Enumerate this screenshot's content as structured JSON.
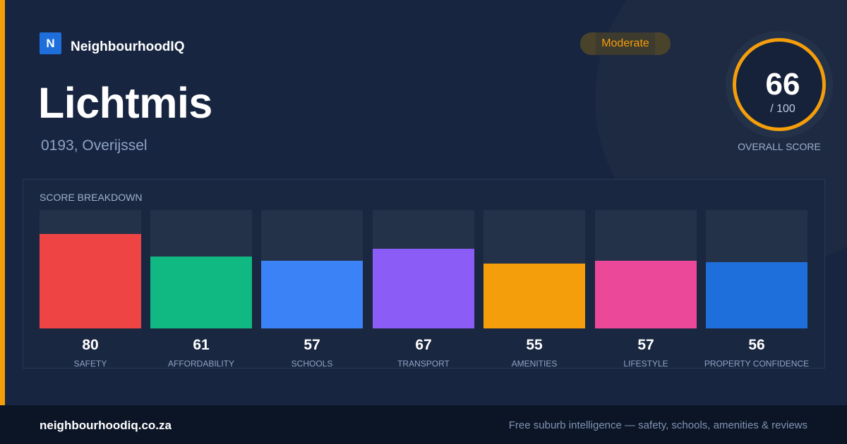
{
  "brand": {
    "logo_letter": "N",
    "name": "NeighbourhoodIQ"
  },
  "suburb": {
    "name": "Lichtmis",
    "location": "0193, Overijssel"
  },
  "rating_badge": "Moderate",
  "overall": {
    "score": "66",
    "denominator": "/ 100",
    "label": "OVERALL SCORE",
    "fraction": 0.66
  },
  "breakdown": {
    "title": "SCORE BREAKDOWN",
    "max": 100,
    "items": [
      {
        "label": "SAFETY",
        "value": 80,
        "color": "#ef4444"
      },
      {
        "label": "AFFORDABILITY",
        "value": 61,
        "color": "#10b981"
      },
      {
        "label": "SCHOOLS",
        "value": 57,
        "color": "#3b82f6"
      },
      {
        "label": "TRANSPORT",
        "value": 67,
        "color": "#8b5cf6"
      },
      {
        "label": "AMENITIES",
        "value": 55,
        "color": "#f59e0b"
      },
      {
        "label": "LIFESTYLE",
        "value": 57,
        "color": "#ec4899"
      },
      {
        "label": "PROPERTY CONFIDENCE",
        "value": 56,
        "color": "#1e6fdb"
      }
    ]
  },
  "footer": {
    "url": "neighbourhoodiq.co.za",
    "tagline": "Free suburb intelligence — safety, schools, amenities & reviews"
  },
  "colors": {
    "accent": "#f59e0b",
    "brand_blue": "#1e6fdb",
    "background": "#172540"
  }
}
